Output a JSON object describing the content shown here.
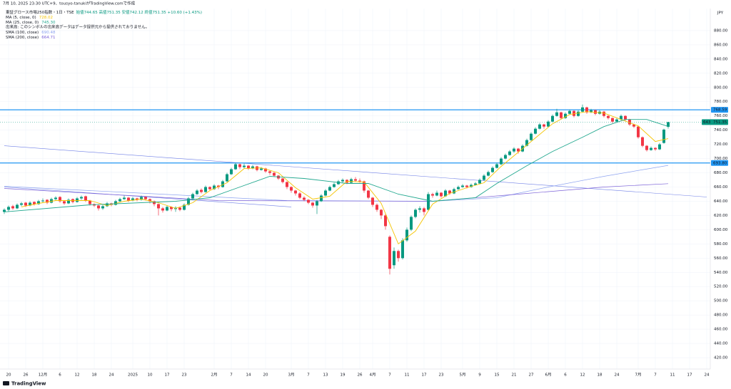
{
  "header": {
    "credit": "7月 10, 2025 23:30 UTC+9、tousyo-tanukiがTradingView.comで作成",
    "symbol": "東証グロース市場250指数・1日・TSE",
    "ohlc": "始値744.65 高値751.35 安値742.12 終値751.35 +10.60 (+1.43%)",
    "volume_note": "出来高: このシンボルの出来高データはデータ提供元から提供されておりません。"
  },
  "chart_data": {
    "type": "candlestick",
    "currency": "JPY",
    "grid": true,
    "up_color": "#089981",
    "down_color": "#f23645",
    "ylim": [
      404,
      911
    ],
    "yticks": [
      {
        "value": 420,
        "label": "420.00"
      },
      {
        "value": 440,
        "label": "440.00"
      },
      {
        "value": 460,
        "label": "460.00"
      },
      {
        "value": 480,
        "label": "480.00"
      },
      {
        "value": 500,
        "label": "500.00"
      },
      {
        "value": 520,
        "label": "520.00"
      },
      {
        "value": 540,
        "label": "540.00"
      },
      {
        "value": 560,
        "label": "560.00"
      },
      {
        "value": 580,
        "label": "580.00"
      },
      {
        "value": 600,
        "label": "600.00"
      },
      {
        "value": 620,
        "label": "620.00"
      },
      {
        "value": 640,
        "label": "640.00"
      },
      {
        "value": 660,
        "label": "660.00"
      },
      {
        "value": 680,
        "label": "680.00"
      },
      {
        "value": 700,
        "label": "700.00"
      },
      {
        "value": 720,
        "label": "720.00"
      },
      {
        "value": 740,
        "label": "740.00"
      },
      {
        "value": 760,
        "label": "760.00"
      },
      {
        "value": 780,
        "label": "780.00"
      },
      {
        "value": 800,
        "label": "800.00"
      },
      {
        "value": 820,
        "label": "820.00"
      },
      {
        "value": 840,
        "label": "840.00"
      },
      {
        "value": 860,
        "label": "860.00"
      },
      {
        "value": 880,
        "label": "880.00"
      }
    ],
    "categories": [
      null,
      "20",
      null,
      null,
      null,
      "26",
      null,
      null,
      null,
      "12月",
      null,
      null,
      null,
      "6",
      null,
      null,
      null,
      "12",
      null,
      null,
      null,
      "18",
      null,
      null,
      null,
      "24",
      null,
      null,
      null,
      null,
      "2025",
      null,
      null,
      null,
      "10",
      null,
      null,
      null,
      "17",
      null,
      null,
      null,
      "23",
      null,
      null,
      null,
      null,
      null,
      null,
      "2月",
      null,
      null,
      null,
      "7",
      null,
      null,
      null,
      "14",
      null,
      null,
      null,
      "20",
      null,
      null,
      null,
      null,
      null,
      "3月",
      null,
      null,
      null,
      "7",
      null,
      null,
      null,
      "13",
      null,
      null,
      null,
      "19",
      null,
      null,
      null,
      "26",
      null,
      null,
      "4月",
      null,
      null,
      null,
      "7",
      null,
      null,
      null,
      "11",
      null,
      null,
      null,
      "17",
      null,
      null,
      null,
      "23",
      null,
      null,
      null,
      null,
      "5月",
      null,
      null,
      null,
      "9",
      null,
      null,
      null,
      "15",
      null,
      null,
      null,
      "21",
      null,
      null,
      null,
      "27",
      null,
      null,
      null,
      "6月",
      null,
      null,
      null,
      "6",
      null,
      null,
      null,
      "12",
      null,
      null,
      null,
      "18",
      null,
      null,
      null,
      "24",
      null,
      null,
      null,
      null,
      "7月",
      null,
      null,
      null,
      "7",
      null,
      null,
      null,
      "11",
      null,
      null,
      null,
      "17",
      null,
      null,
      null,
      "24"
    ],
    "candles": [
      [
        625,
        630,
        622,
        628
      ],
      [
        628,
        634,
        626,
        632
      ],
      [
        633,
        635,
        628,
        630
      ],
      [
        630,
        637,
        629,
        635
      ],
      [
        635,
        639,
        633,
        637
      ],
      [
        638,
        639,
        632,
        634
      ],
      [
        634,
        640,
        633,
        638
      ],
      [
        639,
        640,
        634,
        636
      ],
      [
        636,
        642,
        635,
        640
      ],
      [
        640,
        644,
        638,
        641
      ],
      [
        642,
        643,
        636,
        638
      ],
      [
        638,
        645,
        637,
        643
      ],
      [
        643,
        647,
        641,
        645
      ],
      [
        646,
        647,
        638,
        640
      ],
      [
        640,
        641,
        635,
        637
      ],
      [
        637,
        644,
        636,
        642
      ],
      [
        643,
        644,
        637,
        639
      ],
      [
        639,
        646,
        638,
        644
      ],
      [
        644,
        648,
        642,
        646
      ],
      [
        647,
        648,
        639,
        641
      ],
      [
        641,
        642,
        634,
        636
      ],
      [
        636,
        637,
        632,
        634
      ],
      [
        634,
        635,
        627,
        630
      ],
      [
        630,
        635,
        628,
        633
      ],
      [
        633,
        639,
        632,
        637
      ],
      [
        637,
        638,
        633,
        635
      ],
      [
        635,
        642,
        634,
        640
      ],
      [
        640,
        645,
        639,
        643
      ],
      [
        643,
        648,
        642,
        645
      ],
      [
        645,
        646,
        639,
        641
      ],
      [
        641,
        646,
        640,
        644
      ],
      [
        644,
        645,
        640,
        642
      ],
      [
        642,
        648,
        641,
        646
      ],
      [
        646,
        647,
        641,
        643
      ],
      [
        643,
        644,
        637,
        640
      ],
      [
        640,
        641,
        633,
        636
      ],
      [
        636,
        637,
        620,
        630
      ],
      [
        630,
        632,
        624,
        627
      ],
      [
        627,
        634,
        626,
        632
      ],
      [
        632,
        633,
        626,
        629
      ],
      [
        629,
        633,
        625,
        631
      ],
      [
        631,
        632,
        626,
        628
      ],
      [
        628,
        637,
        627,
        635
      ],
      [
        635,
        646,
        634,
        644
      ],
      [
        644,
        652,
        643,
        650
      ],
      [
        650,
        657,
        649,
        655
      ],
      [
        656,
        658,
        651,
        653
      ],
      [
        653,
        662,
        652,
        660
      ],
      [
        660,
        661,
        655,
        657
      ],
      [
        657,
        664,
        656,
        662
      ],
      [
        662,
        663,
        657,
        660
      ],
      [
        660,
        670,
        659,
        668
      ],
      [
        668,
        680,
        667,
        678
      ],
      [
        678,
        687,
        677,
        685
      ],
      [
        685,
        694,
        684,
        692
      ],
      [
        692,
        693,
        685,
        688
      ],
      [
        688,
        693,
        686,
        690
      ],
      [
        690,
        691,
        684,
        686
      ],
      [
        686,
        691,
        685,
        689
      ],
      [
        689,
        690,
        682,
        684
      ],
      [
        684,
        688,
        683,
        686
      ],
      [
        686,
        687,
        680,
        682
      ],
      [
        682,
        683,
        677,
        680
      ],
      [
        680,
        681,
        674,
        676
      ],
      [
        676,
        677,
        670,
        672
      ],
      [
        672,
        673,
        665,
        667
      ],
      [
        667,
        668,
        657,
        660
      ],
      [
        660,
        661,
        652,
        655
      ],
      [
        655,
        656,
        648,
        651
      ],
      [
        651,
        653,
        643,
        645
      ],
      [
        645,
        647,
        640,
        642
      ],
      [
        642,
        643,
        636,
        638
      ],
      [
        638,
        639,
        631,
        634
      ],
      [
        634,
        642,
        622,
        640
      ],
      [
        640,
        650,
        639,
        648
      ],
      [
        648,
        657,
        647,
        655
      ],
      [
        655,
        662,
        654,
        660
      ],
      [
        660,
        666,
        659,
        664
      ],
      [
        664,
        670,
        663,
        668
      ],
      [
        668,
        672,
        666,
        670
      ],
      [
        670,
        671,
        664,
        666
      ],
      [
        666,
        673,
        665,
        671
      ],
      [
        671,
        674,
        667,
        669
      ],
      [
        669,
        672,
        666,
        668
      ],
      [
        668,
        669,
        652,
        655
      ],
      [
        655,
        656,
        643,
        645
      ],
      [
        645,
        646,
        632,
        635
      ],
      [
        635,
        637,
        625,
        628
      ],
      [
        628,
        629,
        615,
        620
      ],
      [
        620,
        622,
        600,
        605
      ],
      [
        590,
        592,
        537,
        545
      ],
      [
        550,
        575,
        545,
        570
      ],
      [
        570,
        572,
        555,
        560
      ],
      [
        560,
        588,
        558,
        585
      ],
      [
        585,
        603,
        583,
        600
      ],
      [
        600,
        620,
        598,
        618
      ],
      [
        618,
        630,
        616,
        628
      ],
      [
        628,
        633,
        624,
        630
      ],
      [
        630,
        632,
        620,
        625
      ],
      [
        628,
        653,
        627,
        650
      ],
      [
        650,
        652,
        645,
        648
      ],
      [
        648,
        655,
        647,
        652
      ],
      [
        652,
        653,
        645,
        647
      ],
      [
        647,
        657,
        646,
        655
      ],
      [
        655,
        656,
        649,
        651
      ],
      [
        651,
        659,
        650,
        657
      ],
      [
        657,
        662,
        656,
        660
      ],
      [
        660,
        664,
        659,
        662
      ],
      [
        662,
        663,
        658,
        660
      ],
      [
        660,
        665,
        659,
        663
      ],
      [
        663,
        667,
        662,
        665
      ],
      [
        665,
        672,
        664,
        670
      ],
      [
        670,
        678,
        669,
        676
      ],
      [
        676,
        683,
        675,
        681
      ],
      [
        681,
        689,
        680,
        687
      ],
      [
        687,
        694,
        686,
        692
      ],
      [
        692,
        702,
        691,
        700
      ],
      [
        700,
        707,
        699,
        705
      ],
      [
        705,
        712,
        704,
        710
      ],
      [
        710,
        716,
        708,
        714
      ],
      [
        714,
        715,
        707,
        710
      ],
      [
        710,
        720,
        709,
        718
      ],
      [
        718,
        728,
        717,
        726
      ],
      [
        726,
        737,
        725,
        735
      ],
      [
        735,
        744,
        734,
        742
      ],
      [
        742,
        750,
        741,
        748
      ],
      [
        748,
        749,
        742,
        745
      ],
      [
        745,
        754,
        744,
        752
      ],
      [
        752,
        762,
        751,
        760
      ],
      [
        760,
        770,
        759,
        765
      ],
      [
        765,
        766,
        755,
        757
      ],
      [
        757,
        765,
        756,
        763
      ],
      [
        763,
        769,
        762,
        767
      ],
      [
        767,
        768,
        758,
        760
      ],
      [
        760,
        768,
        759,
        766
      ],
      [
        766,
        776,
        765,
        772
      ],
      [
        772,
        773,
        763,
        765
      ],
      [
        765,
        770,
        764,
        768
      ],
      [
        768,
        769,
        761,
        763
      ],
      [
        763,
        768,
        762,
        766
      ],
      [
        766,
        767,
        758,
        760
      ],
      [
        760,
        761,
        755,
        757
      ],
      [
        757,
        758,
        750,
        752
      ],
      [
        752,
        757,
        751,
        755
      ],
      [
        755,
        762,
        754,
        760
      ],
      [
        760,
        761,
        753,
        755
      ],
      [
        755,
        756,
        746,
        748
      ],
      [
        748,
        749,
        743,
        745
      ],
      [
        745,
        746,
        728,
        730
      ],
      [
        730,
        731,
        716,
        718
      ],
      [
        718,
        719,
        710,
        712
      ],
      [
        712,
        717,
        711,
        715
      ],
      [
        715,
        716,
        711,
        713
      ],
      [
        713,
        722,
        712,
        720
      ],
      [
        722,
        742,
        721,
        740.75
      ],
      [
        744.65,
        751.35,
        742.12,
        751.35
      ]
    ],
    "series": [
      {
        "name": "MA (5, close, 0)",
        "value_label": "728.02",
        "color": "#f5c400",
        "x": [
          4,
          8,
          12,
          16,
          20,
          24,
          28,
          32,
          36,
          40,
          44,
          48,
          52,
          56,
          60,
          64,
          68,
          72,
          76,
          80,
          84,
          88,
          92,
          96,
          100,
          104,
          108,
          112,
          116,
          120,
          124,
          128,
          132,
          136,
          140,
          144,
          148,
          152,
          155
        ],
        "values": [
          632,
          637,
          641,
          641,
          641,
          634,
          640,
          643,
          638,
          630,
          638,
          655,
          666,
          686,
          687,
          680,
          659,
          643,
          647,
          668,
          667,
          637,
          580,
          598,
          636,
          651,
          659,
          666,
          689,
          709,
          729,
          749,
          762,
          766,
          764,
          755,
          746,
          724,
          728.02
        ]
      },
      {
        "name": "MA (25, close, 0)",
        "value_label": "745.30",
        "color": "#22a88f",
        "x": [
          0,
          20,
          40,
          48,
          55,
          62,
          70,
          80,
          85,
          92,
          100,
          110,
          115,
          122,
          128,
          135,
          140,
          145,
          150,
          155
        ],
        "values": [
          625,
          635,
          640,
          645,
          660,
          675,
          672,
          665,
          665,
          650,
          640,
          645,
          665,
          690,
          710,
          730,
          745,
          755,
          755,
          745.3
        ]
      },
      {
        "name": "SMA (100, close)",
        "value_label": "690.48",
        "color": "#8ea4f0",
        "x": [
          0,
          30,
          66,
          100,
          115,
          127,
          140,
          155
        ],
        "values": [
          661,
          652,
          641,
          640,
          645,
          660,
          675,
          690.48
        ]
      },
      {
        "name": "SMA (200, close)",
        "value_label": "664.71",
        "color": "#7b61d8",
        "x": [
          0,
          50,
          100,
          120,
          140,
          155
        ],
        "values": [
          658,
          641,
          640,
          650,
          660,
          664.71
        ]
      }
    ],
    "trendlines": [
      {
        "color": "#6f7fe6",
        "x": [
          0,
          164
        ],
        "values": [
          718,
          646
        ]
      },
      {
        "color": "#6f7fe6",
        "x": [
          0,
          67
        ],
        "values": [
          660,
          632
        ]
      }
    ],
    "price_lines": [
      {
        "value": 768.59,
        "label": "768.59"
      },
      {
        "value": 693.8,
        "label": "693.80"
      }
    ],
    "price_line_color": "#2196f3",
    "last_price": {
      "value": 751.35,
      "label": "751.35"
    },
    "countdown": "643"
  },
  "footer": {
    "logo": "TradingView"
  }
}
